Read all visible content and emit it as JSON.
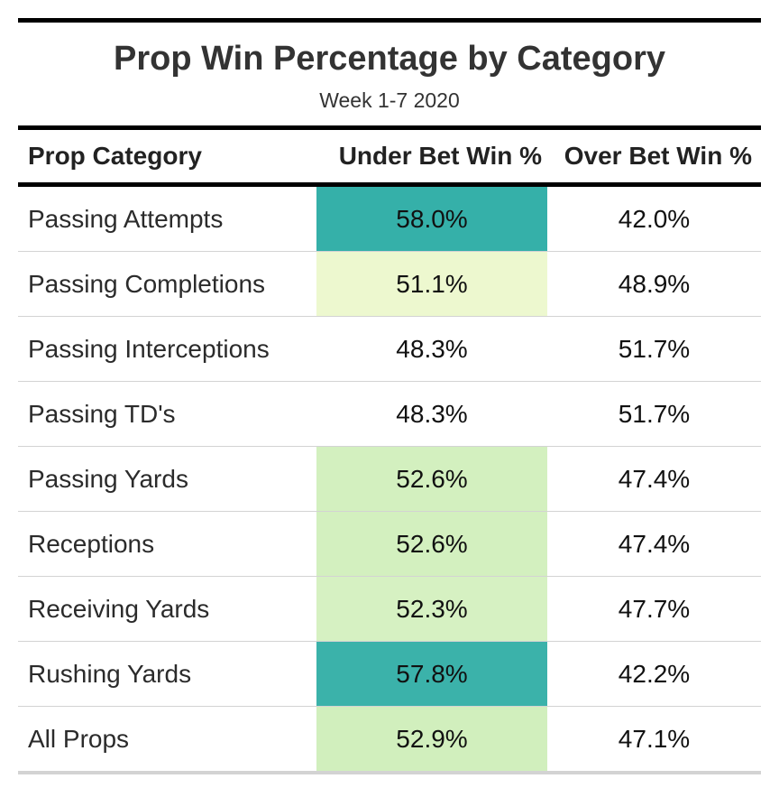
{
  "chart_data": {
    "type": "table",
    "title": "Prop Win Percentage by Category",
    "subtitle": "Week 1-7 2020",
    "columns": [
      "Prop Category",
      "Under Bet Win %",
      "Over Bet Win %"
    ],
    "rows": [
      {
        "category": "Passing Attempts",
        "under": "58.0%",
        "over": "42.0%",
        "under_color": "#35b0a9"
      },
      {
        "category": "Passing Completions",
        "under": "51.1%",
        "over": "48.9%",
        "under_color": "#edf8cf"
      },
      {
        "category": "Passing Interceptions",
        "under": "48.3%",
        "over": "51.7%",
        "under_color": "#ffffff"
      },
      {
        "category": "Passing TD's",
        "under": "48.3%",
        "over": "51.7%",
        "under_color": "#ffffff"
      },
      {
        "category": "Passing Yards",
        "under": "52.6%",
        "over": "47.4%",
        "under_color": "#d3f0bf"
      },
      {
        "category": "Receptions",
        "under": "52.6%",
        "over": "47.4%",
        "under_color": "#d3f0bf"
      },
      {
        "category": "Receiving Yards",
        "under": "52.3%",
        "over": "47.7%",
        "under_color": "#d6f1c2"
      },
      {
        "category": "Rushing Yards",
        "under": "57.8%",
        "over": "42.2%",
        "under_color": "#3bb2aa"
      },
      {
        "category": "All Props",
        "under": "52.9%",
        "over": "47.1%",
        "under_color": "#d1efbd"
      }
    ]
  }
}
